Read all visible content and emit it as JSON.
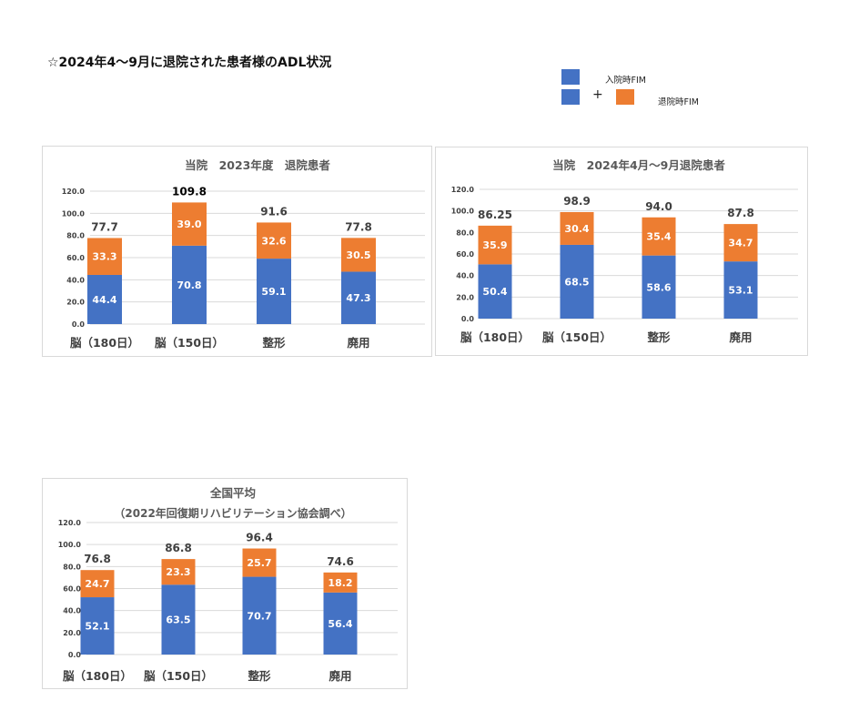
{
  "page": {
    "title": "☆2024年4～9月に退院された患者様のADL状況",
    "legend": {
      "admission": "入院時FIM",
      "discharge": "退院時FIM",
      "plus": "+"
    }
  },
  "colors": {
    "admission": "#4472C4",
    "gain": "#ED7D31",
    "grid": "#d9d9d9"
  },
  "chart_data": [
    {
      "type": "bar",
      "stacked": true,
      "title": "当院　2023年度　退院患者",
      "subtitle": "",
      "categories": [
        "脳（180日）",
        "脳（150日）",
        "整形",
        "廃用"
      ],
      "series": [
        {
          "key": "admission",
          "values": [
            44.4,
            70.8,
            59.1,
            47.3
          ]
        },
        {
          "key": "gain",
          "values": [
            33.3,
            39.0,
            32.6,
            30.5
          ]
        }
      ],
      "totals": [
        "77.7",
        "109.8",
        "91.6",
        "77.8"
      ],
      "ylim": [
        0,
        120
      ],
      "yticks": [
        "0.0",
        "20.0",
        "40.0",
        "60.0",
        "80.0",
        "100.0",
        "120.0"
      ],
      "grid": true
    },
    {
      "type": "bar",
      "stacked": true,
      "title": "当院　2024年4月～9月退院患者",
      "subtitle": "",
      "categories": [
        "脳（180日）",
        "脳（150日）",
        "整形",
        "廃用"
      ],
      "series": [
        {
          "key": "admission",
          "values": [
            50.4,
            68.5,
            58.6,
            53.1
          ]
        },
        {
          "key": "gain",
          "values": [
            35.9,
            30.4,
            35.4,
            34.7
          ]
        }
      ],
      "totals": [
        "86.25",
        "98.9",
        "94.0",
        "87.8"
      ],
      "ylim": [
        0,
        120
      ],
      "yticks": [
        "0.0",
        "20.0",
        "40.0",
        "60.0",
        "80.0",
        "100.0",
        "120.0"
      ],
      "grid": true
    },
    {
      "type": "bar",
      "stacked": true,
      "title": "全国平均",
      "subtitle": "（2022年回復期リハビリテーション協会調べ）",
      "categories": [
        "脳（180日）",
        "脳（150日）",
        "整形",
        "廃用"
      ],
      "series": [
        {
          "key": "admission",
          "values": [
            52.1,
            63.5,
            70.7,
            56.4
          ]
        },
        {
          "key": "gain",
          "values": [
            24.7,
            23.3,
            25.7,
            18.2
          ]
        }
      ],
      "totals": [
        "76.8",
        "86.8",
        "96.4",
        "74.6"
      ],
      "ylim": [
        0,
        120
      ],
      "yticks": [
        "0.0",
        "20.0",
        "40.0",
        "60.0",
        "80.0",
        "100.0",
        "120.0"
      ],
      "grid": true
    }
  ]
}
